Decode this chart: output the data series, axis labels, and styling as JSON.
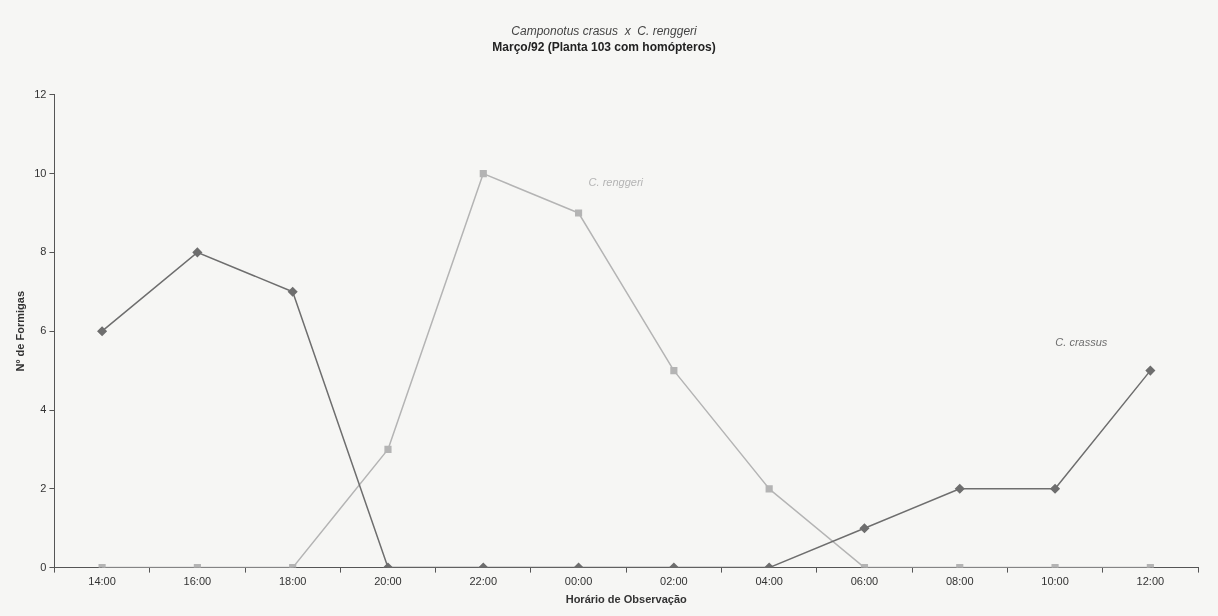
{
  "chart_data": {
    "type": "line",
    "title": "Camponotus crasus  x  C. renggeri",
    "subtitle": "Março/92 (Planta 103 com homópteros)",
    "xlabel": "Horário de Observação",
    "ylabel": "Nº de Formigas",
    "categories": [
      "14:00",
      "16:00",
      "18:00",
      "20:00",
      "22:00",
      "00:00",
      "02:00",
      "04:00",
      "06:00",
      "08:00",
      "10:00",
      "12:00"
    ],
    "series": [
      {
        "name": "C. crassus",
        "color": "#6e6e6e",
        "marker": "diamond",
        "values": [
          6,
          8,
          7,
          0,
          0,
          0,
          0,
          0,
          1,
          2,
          2,
          5
        ]
      },
      {
        "name": "C. renggeri",
        "color": "#b4b4b4",
        "marker": "square",
        "values": [
          0,
          0,
          0,
          3,
          10,
          9,
          5,
          2,
          0,
          0,
          0,
          0
        ]
      }
    ],
    "ylim": [
      0,
      12
    ],
    "yticks": [
      0,
      2,
      4,
      6,
      8,
      10,
      12
    ],
    "grid": false,
    "legend": false,
    "line_style": "solid"
  }
}
